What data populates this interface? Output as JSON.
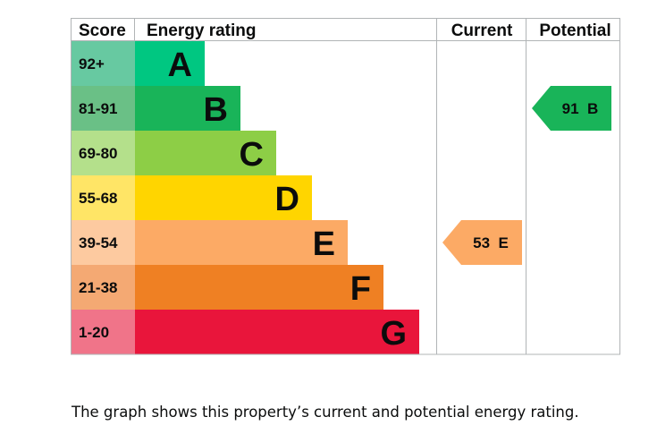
{
  "chart_data": {
    "type": "bar",
    "headers": {
      "score": "Score",
      "rating": "Energy rating",
      "current": "Current",
      "potential": "Potential"
    },
    "bands": [
      {
        "score": "92+",
        "letter": "A",
        "color": "#00c781",
        "score_bg": "#67c9a1"
      },
      {
        "score": "81-91",
        "letter": "B",
        "color": "#19b459",
        "score_bg": "#6ac086"
      },
      {
        "score": "69-80",
        "letter": "C",
        "color": "#8dce46",
        "score_bg": "#b4e08b"
      },
      {
        "score": "55-68",
        "letter": "D",
        "color": "#ffd500",
        "score_bg": "#ffe566"
      },
      {
        "score": "39-54",
        "letter": "E",
        "color": "#fcaa65",
        "score_bg": "#fdcaa0"
      },
      {
        "score": "21-38",
        "letter": "F",
        "color": "#ef8023",
        "score_bg": "#f4a973"
      },
      {
        "score": "1-20",
        "letter": "G",
        "color": "#e9153b",
        "score_bg": "#f07489"
      }
    ],
    "current": {
      "value": 53,
      "band": "E",
      "label": "53 E",
      "color": "#fcaa65"
    },
    "potential": {
      "value": 91,
      "band": "B",
      "label": "91 B",
      "color": "#19b459"
    }
  },
  "caption": "The graph shows this property’s current and potential energy rating."
}
